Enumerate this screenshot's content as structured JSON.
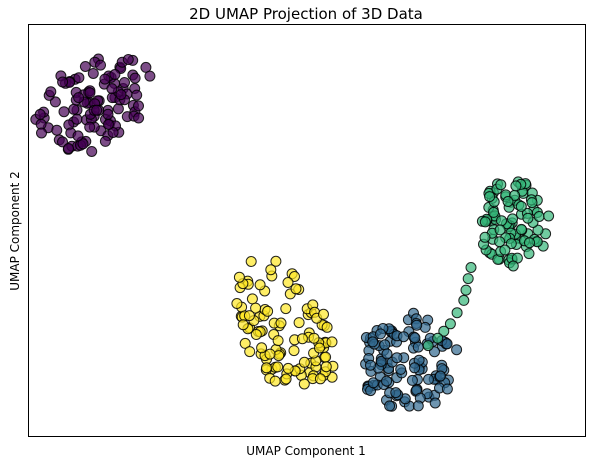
{
  "chart_data": {
    "type": "scatter",
    "title": "2D UMAP Projection of 3D Data",
    "xlabel": "UMAP Component 1",
    "ylabel": "UMAP Component 2",
    "xlim": [
      0,
      100
    ],
    "ylim": [
      0,
      100
    ],
    "xticks": false,
    "yticks": false,
    "grid": false,
    "legend": false,
    "marker_edge_color": "#000000",
    "marker_alpha": 0.7,
    "clusters": [
      {
        "color": "#440154",
        "center": [
          12,
          81
        ],
        "spread": [
          4.8,
          7.6
        ],
        "rotation": -35,
        "count": 110,
        "seed": 11
      },
      {
        "color": "#35b779",
        "center": [
          87,
          52
        ],
        "spread": [
          3.6,
          6.2
        ],
        "rotation": 0,
        "count": 95,
        "seed": 23
      },
      {
        "color": "#31688e",
        "center": [
          68,
          17
        ],
        "spread": [
          4.6,
          7.0
        ],
        "rotation": 0,
        "count": 115,
        "seed": 37
      },
      {
        "color": "#fde725",
        "center": [
          46,
          27
        ],
        "spread": [
          4.6,
          9.5
        ],
        "rotation": 15,
        "count": 110,
        "seed": 53
      }
    ],
    "bridge_points": [
      {
        "x": 79.5,
        "y": 41.0,
        "color": "#35b779"
      },
      {
        "x": 79.0,
        "y": 38.3,
        "color": "#35b779"
      },
      {
        "x": 78.6,
        "y": 35.5,
        "color": "#35b779"
      },
      {
        "x": 78.2,
        "y": 33.0,
        "color": "#35b779"
      },
      {
        "x": 77.0,
        "y": 30.0,
        "color": "#35b779"
      },
      {
        "x": 75.8,
        "y": 27.3,
        "color": "#35b779"
      },
      {
        "x": 74.6,
        "y": 25.5,
        "color": "#35b779"
      },
      {
        "x": 73.5,
        "y": 23.8,
        "color": "#35b779"
      },
      {
        "x": 71.8,
        "y": 22.0,
        "color": "#35b779"
      },
      {
        "x": 76.9,
        "y": 21.0,
        "color": "#31688e"
      }
    ]
  }
}
